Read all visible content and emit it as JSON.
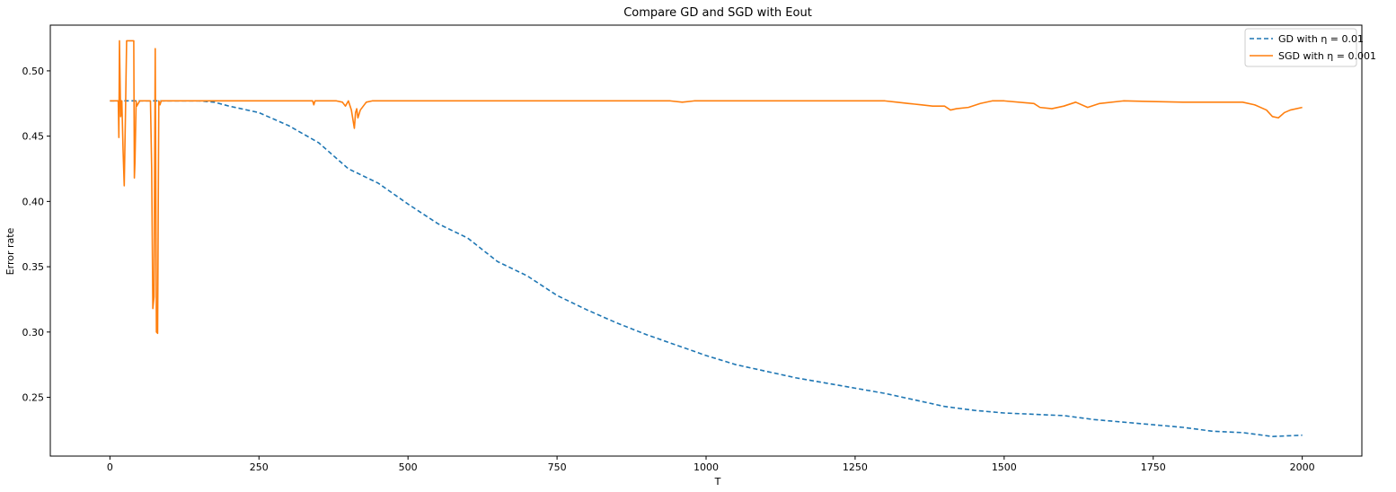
{
  "chart_data": {
    "type": "line",
    "title": "Compare GD and SGD with Eout",
    "xlabel": "T",
    "ylabel": "Error rate",
    "xlim": [
      -100,
      2100
    ],
    "ylim": [
      0.205,
      0.535
    ],
    "xticks": [
      0,
      250,
      500,
      750,
      1000,
      1250,
      1500,
      1750,
      2000
    ],
    "xtick_labels": [
      "0",
      "250",
      "500",
      "750",
      "1000",
      "1250",
      "1500",
      "1750",
      "2000"
    ],
    "yticks": [
      0.25,
      0.3,
      0.35,
      0.4,
      0.45,
      0.5
    ],
    "ytick_labels": [
      "0.25",
      "0.30",
      "0.35",
      "0.40",
      "0.45",
      "0.50"
    ],
    "grid": false,
    "legend_position": "top-right",
    "series": [
      {
        "name": "GD with η = 0.01",
        "color": "#1f77b4",
        "style": "dashed",
        "x": [
          0,
          50,
          100,
          150,
          175,
          200,
          250,
          300,
          350,
          400,
          450,
          500,
          550,
          600,
          650,
          700,
          750,
          800,
          850,
          900,
          950,
          1000,
          1050,
          1100,
          1150,
          1200,
          1250,
          1300,
          1350,
          1400,
          1450,
          1500,
          1550,
          1600,
          1650,
          1700,
          1750,
          1800,
          1850,
          1900,
          1950,
          2000
        ],
        "y": [
          0.477,
          0.477,
          0.477,
          0.477,
          0.476,
          0.473,
          0.468,
          0.458,
          0.445,
          0.425,
          0.414,
          0.398,
          0.383,
          0.372,
          0.354,
          0.343,
          0.328,
          0.317,
          0.307,
          0.298,
          0.29,
          0.282,
          0.275,
          0.27,
          0.265,
          0.261,
          0.257,
          0.253,
          0.248,
          0.243,
          0.24,
          0.238,
          0.237,
          0.236,
          0.233,
          0.231,
          0.229,
          0.227,
          0.224,
          0.223,
          0.22,
          0.221
        ]
      },
      {
        "name": "SGD with η = 0.001",
        "color": "#ff7f0e",
        "style": "solid",
        "x": [
          0,
          10,
          14,
          15,
          16,
          18,
          20,
          22,
          24,
          26,
          28,
          30,
          35,
          40,
          41,
          42,
          44,
          45,
          50,
          60,
          68,
          70,
          72,
          74,
          76,
          78,
          80,
          82,
          84,
          86,
          90,
          100,
          150,
          200,
          250,
          300,
          340,
          342,
          344,
          350,
          380,
          390,
          395,
          400,
          405,
          410,
          412,
          414,
          416,
          420,
          425,
          430,
          440,
          500,
          600,
          700,
          800,
          900,
          940,
          960,
          980,
          1000,
          1100,
          1200,
          1300,
          1320,
          1340,
          1360,
          1380,
          1400,
          1410,
          1420,
          1440,
          1460,
          1480,
          1500,
          1550,
          1560,
          1580,
          1600,
          1620,
          1640,
          1660,
          1700,
          1800,
          1900,
          1920,
          1940,
          1950,
          1960,
          1970,
          1980,
          2000
        ],
        "y": [
          0.477,
          0.477,
          0.477,
          0.449,
          0.523,
          0.465,
          0.477,
          0.44,
          0.412,
          0.465,
          0.523,
          0.523,
          0.523,
          0.523,
          0.418,
          0.43,
          0.477,
          0.473,
          0.477,
          0.477,
          0.477,
          0.426,
          0.318,
          0.327,
          0.517,
          0.3,
          0.299,
          0.477,
          0.474,
          0.477,
          0.477,
          0.477,
          0.477,
          0.477,
          0.477,
          0.477,
          0.477,
          0.474,
          0.477,
          0.477,
          0.477,
          0.476,
          0.473,
          0.477,
          0.47,
          0.456,
          0.468,
          0.471,
          0.464,
          0.47,
          0.473,
          0.476,
          0.477,
          0.477,
          0.477,
          0.477,
          0.477,
          0.477,
          0.477,
          0.476,
          0.477,
          0.477,
          0.477,
          0.477,
          0.477,
          0.476,
          0.475,
          0.474,
          0.473,
          0.473,
          0.47,
          0.471,
          0.472,
          0.475,
          0.477,
          0.477,
          0.475,
          0.472,
          0.471,
          0.473,
          0.476,
          0.472,
          0.475,
          0.477,
          0.476,
          0.476,
          0.474,
          0.47,
          0.465,
          0.464,
          0.468,
          0.47,
          0.472
        ]
      }
    ]
  }
}
